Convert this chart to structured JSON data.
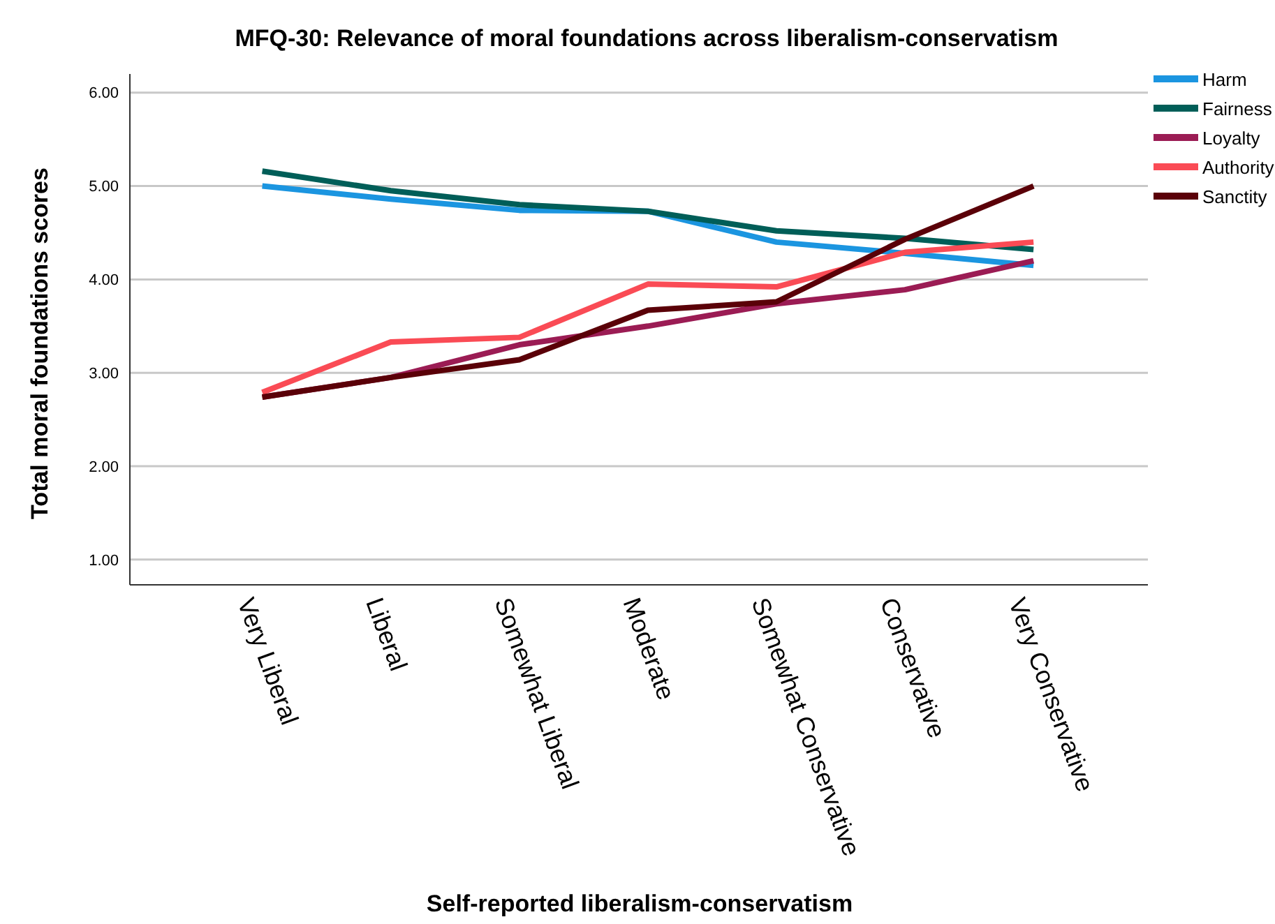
{
  "chart_data": {
    "type": "line",
    "title": "MFQ-30: Relevance of moral foundations across liberalism-conservatism",
    "xlabel": "Self-reported liberalism-conservatism",
    "ylabel": "Total moral foundations scores",
    "categories": [
      "Very Liberal",
      "Liberal",
      "Somewhat Liberal",
      "Moderate",
      "Somewhat Conservative",
      "Conservative",
      "Very Conservative"
    ],
    "series": [
      {
        "name": "Harm",
        "color": "#1b95e0",
        "values": [
          5.0,
          4.86,
          4.74,
          4.73,
          4.4,
          4.28,
          4.15
        ]
      },
      {
        "name": "Fairness",
        "color": "#005e58",
        "values": [
          5.16,
          4.95,
          4.8,
          4.73,
          4.52,
          4.44,
          4.32
        ]
      },
      {
        "name": "Loyalty",
        "color": "#9b1c54",
        "values": [
          2.74,
          2.95,
          3.3,
          3.5,
          3.74,
          3.89,
          4.2
        ]
      },
      {
        "name": "Authority",
        "color": "#fa4b55",
        "values": [
          2.79,
          3.33,
          3.38,
          3.95,
          3.92,
          4.29,
          4.4
        ]
      },
      {
        "name": "Sanctity",
        "color": "#5a0008",
        "values": [
          2.74,
          2.95,
          3.14,
          3.67,
          3.76,
          4.43,
          5.0
        ]
      }
    ],
    "ylim": [
      0.73,
      6.2
    ],
    "yticks": [
      {
        "value": 1,
        "label": "1.00"
      },
      {
        "value": 2,
        "label": "2.00"
      },
      {
        "value": 3,
        "label": "3.00"
      },
      {
        "value": 4,
        "label": "4.00"
      },
      {
        "value": 5,
        "label": "5.00"
      },
      {
        "value": 6,
        "label": "6.00"
      }
    ],
    "grid": "y",
    "legend": "top right",
    "marker": "none",
    "line_style": "solid"
  }
}
